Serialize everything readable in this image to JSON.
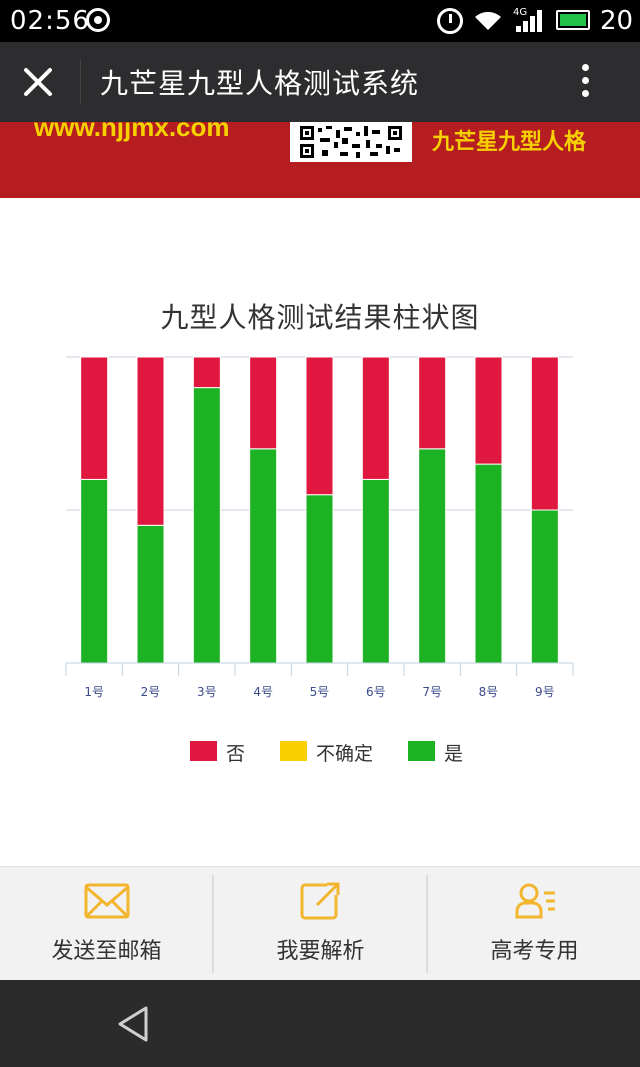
{
  "status_bar": {
    "time": "02:56",
    "network": "4G",
    "battery_level": "20",
    "battery_color": "#24c24a"
  },
  "title_bar": {
    "title": "九芒星九型人格测试系统",
    "close_icon": "close-icon",
    "more_icon": "more-vertical-icon"
  },
  "banner": {
    "url": "www.njjmx.com",
    "slogan": "九芒星九型人格",
    "background": "#b51d20",
    "text_color": "#f6d100"
  },
  "chart_data": {
    "type": "bar",
    "stacked": true,
    "title": "九型人格测试结果柱状图",
    "categories": [
      "1号",
      "2号",
      "3号",
      "4号",
      "5号",
      "6号",
      "7号",
      "8号",
      "9号"
    ],
    "series": [
      {
        "name": "是",
        "color": "#1db224",
        "values": [
          0.6,
          0.45,
          0.9,
          0.7,
          0.55,
          0.6,
          0.7,
          0.65,
          0.5
        ]
      },
      {
        "name": "不确定",
        "color": "#fbd000",
        "values": [
          0,
          0,
          0,
          0,
          0,
          0,
          0,
          0,
          0
        ]
      },
      {
        "name": "否",
        "color": "#e0173e",
        "values": [
          0.4,
          0.55,
          0.1,
          0.3,
          0.45,
          0.4,
          0.3,
          0.35,
          0.5
        ]
      }
    ],
    "legend": {
      "placement": "bottom",
      "order": [
        "否",
        "不确定",
        "是"
      ]
    },
    "ylim": [
      0,
      1
    ],
    "grid": true,
    "ytick_labels_visible": false
  },
  "actions": [
    {
      "label": "发送至邮箱",
      "icon": "envelope-icon"
    },
    {
      "label": "我要解析",
      "icon": "share-edit-icon"
    },
    {
      "label": "高考专用",
      "icon": "contacts-icon"
    }
  ],
  "action_icon_color": "#f3b42e",
  "nav_bar": {
    "back_icon": "back-triangle-icon"
  }
}
